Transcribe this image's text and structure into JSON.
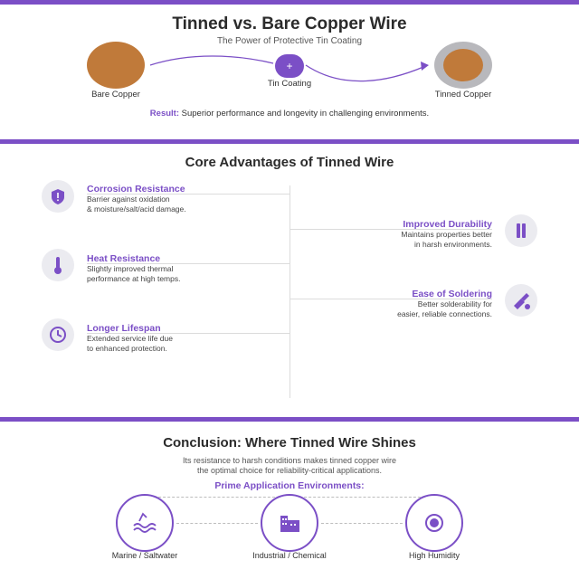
{
  "colors": {
    "accent": "#7b4fc6",
    "copper": "#c07a3a",
    "tin": "#b8b8bc",
    "icon_bg": "#ebebf0"
  },
  "intro": {
    "title": "Tinned vs. Bare Copper Wire",
    "subtitle": "The Power of Protective Tin Coating",
    "bare_label": "Bare Copper",
    "step_symbol": "+",
    "step_label": "Tin Coating",
    "tinned_label": "Tinned Copper",
    "result_key": "Result:",
    "result_text": " Superior performance and longevity in challenging environments."
  },
  "advantages": {
    "title": "Core Advantages of Tinned Wire",
    "left": [
      {
        "title": "Corrosion Resistance",
        "desc1": "Barrier against oxidation",
        "desc2": "& moisture/salt/acid damage.",
        "icon": "shield-icon"
      },
      {
        "title": "Heat Resistance",
        "desc1": "Slightly improved thermal",
        "desc2": "performance at high temps.",
        "icon": "thermometer-icon"
      },
      {
        "title": "Longer Lifespan",
        "desc1": "Extended service life due",
        "desc2": "to enhanced protection.",
        "icon": "clock-icon"
      }
    ],
    "right": [
      {
        "title": "Improved Durability",
        "desc1": "Maintains properties better",
        "desc2": "in harsh environments.",
        "icon": "bars-icon"
      },
      {
        "title": "Ease of Soldering",
        "desc1": "Better solderability for",
        "desc2": "easier, reliable connections.",
        "icon": "soldering-icon"
      }
    ]
  },
  "conclusion": {
    "title": "Conclusion: Where Tinned Wire Shines",
    "line1": "Its resistance to harsh conditions makes tinned copper wire",
    "line2": "the optimal choice for reliability-critical applications.",
    "env_heading": "Prime Application Environments:",
    "environments": [
      {
        "label": "Marine / Saltwater",
        "icon": "waves-icon"
      },
      {
        "label": "Industrial / Chemical",
        "icon": "factory-icon"
      },
      {
        "label": "High Humidity",
        "icon": "humidity-icon"
      }
    ]
  }
}
